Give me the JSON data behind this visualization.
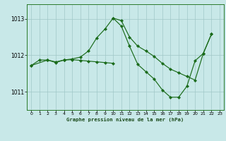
{
  "title": "Graphe pression niveau de la mer (hPa)",
  "bg_color": "#c8e8e8",
  "grid_color": "#a0c8c8",
  "line_color": "#1a6b1a",
  "xlim": [
    -0.5,
    23.5
  ],
  "ylim": [
    1010.5,
    1013.4
  ],
  "yticks": [
    1011,
    1012,
    1013
  ],
  "xticks": [
    0,
    1,
    2,
    3,
    4,
    5,
    6,
    7,
    8,
    9,
    10,
    11,
    12,
    13,
    14,
    15,
    16,
    17,
    18,
    19,
    20,
    21,
    22,
    23
  ],
  "series": [
    {
      "x": [
        0,
        1,
        2,
        3,
        4,
        5,
        6,
        7,
        8,
        9,
        10,
        11,
        12,
        13,
        14,
        15,
        16,
        17,
        18,
        19,
        20,
        21,
        22
      ],
      "y": [
        1011.72,
        1011.87,
        1011.87,
        1011.8,
        1011.87,
        1011.9,
        1011.95,
        1012.12,
        1012.48,
        1012.72,
        1013.02,
        1012.8,
        1012.25,
        1011.75,
        1011.55,
        1011.35,
        1011.05,
        1010.85,
        1010.85,
        1011.15,
        1011.85,
        1012.05,
        1012.58
      ]
    },
    {
      "x": [
        10,
        11,
        12,
        13,
        14,
        15,
        16,
        17,
        18,
        19,
        20,
        21,
        22
      ],
      "y": [
        1013.02,
        1012.95,
        1012.5,
        1012.25,
        1012.12,
        1011.97,
        1011.78,
        1011.62,
        1011.52,
        1011.42,
        1011.32,
        1012.05,
        1012.58
      ]
    },
    {
      "x": [
        0,
        2,
        3,
        4
      ],
      "y": [
        1011.72,
        1011.87,
        1011.82,
        1011.87
      ]
    },
    {
      "x": [
        4,
        5,
        6,
        7,
        8,
        9,
        10
      ],
      "y": [
        1011.87,
        1011.88,
        1011.86,
        1011.84,
        1011.82,
        1011.8,
        1011.78
      ]
    }
  ]
}
